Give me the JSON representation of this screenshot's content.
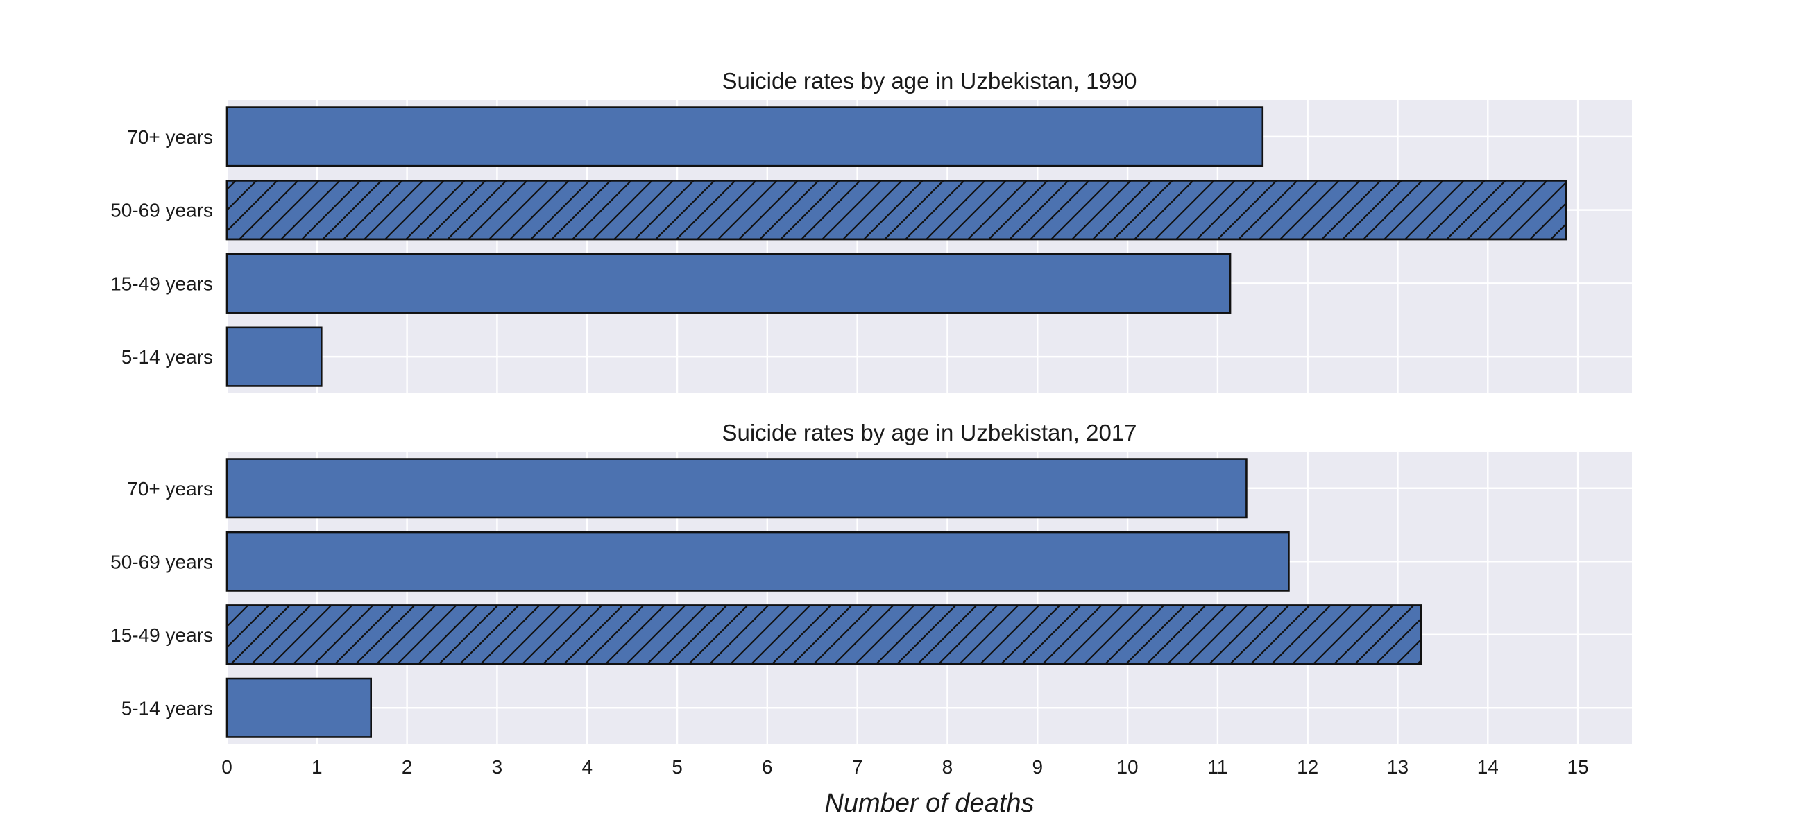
{
  "chart_data": [
    {
      "type": "bar",
      "orientation": "horizontal",
      "title": "Suicide rates by age in Uzbekistan, 1990",
      "categories": [
        "70+ years",
        "50-69 years",
        "15-49 years",
        "5-14 years"
      ],
      "values": [
        11.5,
        14.87,
        11.14,
        1.05
      ],
      "highlighted": "50-69 years",
      "xlim": [
        0,
        15.6
      ],
      "xticks": [
        0,
        1,
        2,
        3,
        4,
        5,
        6,
        7,
        8,
        9,
        10,
        11,
        12,
        13,
        14,
        15
      ],
      "xlabel": "",
      "ylabel": "",
      "grid": true
    },
    {
      "type": "bar",
      "orientation": "horizontal",
      "title": "Suicide rates by age in Uzbekistan, 2017",
      "categories": [
        "70+ years",
        "50-69 years",
        "15-49 years",
        "5-14 years"
      ],
      "values": [
        11.32,
        11.79,
        13.26,
        1.6
      ],
      "highlighted": "15-49 years",
      "xlim": [
        0,
        15.6
      ],
      "xticks": [
        0,
        1,
        2,
        3,
        4,
        5,
        6,
        7,
        8,
        9,
        10,
        11,
        12,
        13,
        14,
        15
      ],
      "xlabel": "Number of deaths",
      "ylabel": "",
      "grid": true
    }
  ],
  "colors": {
    "bar": "#4c72b0",
    "plot_background": "#eaeaf2",
    "grid": "#ffffff",
    "edge": "#111111"
  }
}
